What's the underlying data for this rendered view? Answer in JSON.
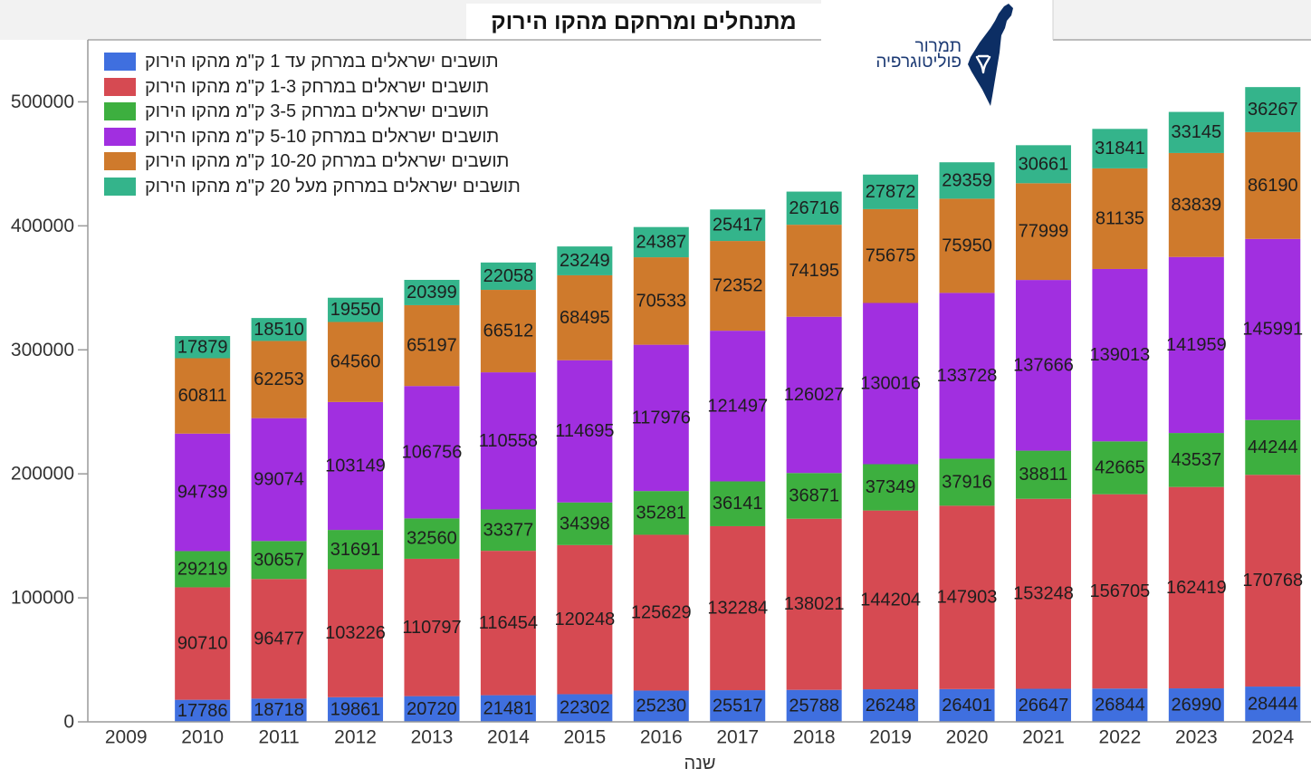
{
  "logo": {
    "line1": "תמרור",
    "line2": "פוליטוגרפיה",
    "icon": "israel-map-icon",
    "color": "#0c2e64"
  },
  "chart_data": {
    "type": "bar",
    "stacked": true,
    "title": "מתנחלים ומרחקם מהקו הירוק",
    "xlabel": "שנה",
    "categories": [
      "2009",
      "2010",
      "2011",
      "2012",
      "2013",
      "2014",
      "2015",
      "2016",
      "2017",
      "2018",
      "2019",
      "2020",
      "2021",
      "2022",
      "2023",
      "2024"
    ],
    "yticks": [
      0,
      100000,
      200000,
      300000,
      400000,
      500000
    ],
    "ylim": [
      0,
      550000
    ],
    "grid": false,
    "legend": "top-left",
    "series": [
      {
        "name": "תושבים ישראלים במרחק עד 1 ק\"מ מהקו הירוק",
        "color": "#3f6fdf",
        "values": [
          null,
          17786,
          18718,
          19861,
          20720,
          21481,
          22302,
          25230,
          25517,
          25788,
          26248,
          26401,
          26647,
          26844,
          26990,
          28444
        ]
      },
      {
        "name": "תושבים ישראלים במרחק 1-3 ק\"מ מהקו הירוק",
        "color": "#d64a52",
        "values": [
          null,
          90710,
          96477,
          103226,
          110797,
          116454,
          120248,
          125629,
          132284,
          138021,
          144204,
          147903,
          153248,
          156705,
          162419,
          170768
        ]
      },
      {
        "name": "תושבים ישראלים במרחק 3-5 ק\"מ מהקו הירוק",
        "color": "#3daf3f",
        "values": [
          null,
          29219,
          30657,
          31691,
          32560,
          33377,
          34398,
          35281,
          36141,
          36871,
          37349,
          37916,
          38811,
          42665,
          43537,
          44244
        ]
      },
      {
        "name": "תושבים ישראלים במרחק 5-10 ק\"מ מהקו הירוק",
        "color": "#a12fe0",
        "values": [
          null,
          94739,
          99074,
          103149,
          106756,
          110558,
          114695,
          117976,
          121497,
          126027,
          130016,
          133728,
          137666,
          139013,
          141959,
          145991
        ]
      },
      {
        "name": "תושבים ישראלים במרחק 10-20 ק\"מ מהקו הירוק",
        "color": "#cf7a2c",
        "values": [
          null,
          60811,
          62253,
          64560,
          65197,
          66512,
          68495,
          70533,
          72352,
          74195,
          75675,
          75950,
          77999,
          81135,
          83839,
          86190
        ]
      },
      {
        "name": "תושבים ישראלים במרחק מעל 20 ק\"מ מהקו הירוק",
        "color": "#34b48b",
        "values": [
          null,
          17879,
          18510,
          19550,
          20399,
          22058,
          23249,
          24387,
          25417,
          26716,
          27872,
          29359,
          30661,
          31841,
          33145,
          36267
        ]
      }
    ]
  }
}
